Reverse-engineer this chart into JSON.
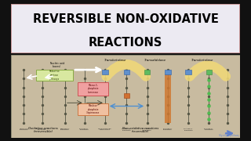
{
  "title_line1": "REVERSIBLE NON-OXIDATIVE",
  "title_line2": "REACTIONS",
  "title_bg": "#eceaf2",
  "title_border": "#c08888",
  "outer_bg": "#111111",
  "diagram_bg": "#c8bba0",
  "title_fontsize": 10.5,
  "title_font_weight": "bold",
  "yellow_arc_color": "#f0d878",
  "orange_bar_color": "#d07830",
  "green_dots_color": "#50bb50",
  "blue_arrow_color": "#5090d0",
  "white_arrow_color": "#ffffff",
  "pink_box_color1": "#f0a0a0",
  "pink_box_color2": "#f0c0a0",
  "green_box_color": "#d8e8a0",
  "col_color": "#555544",
  "bottom_arrow_color": "#6080cc"
}
